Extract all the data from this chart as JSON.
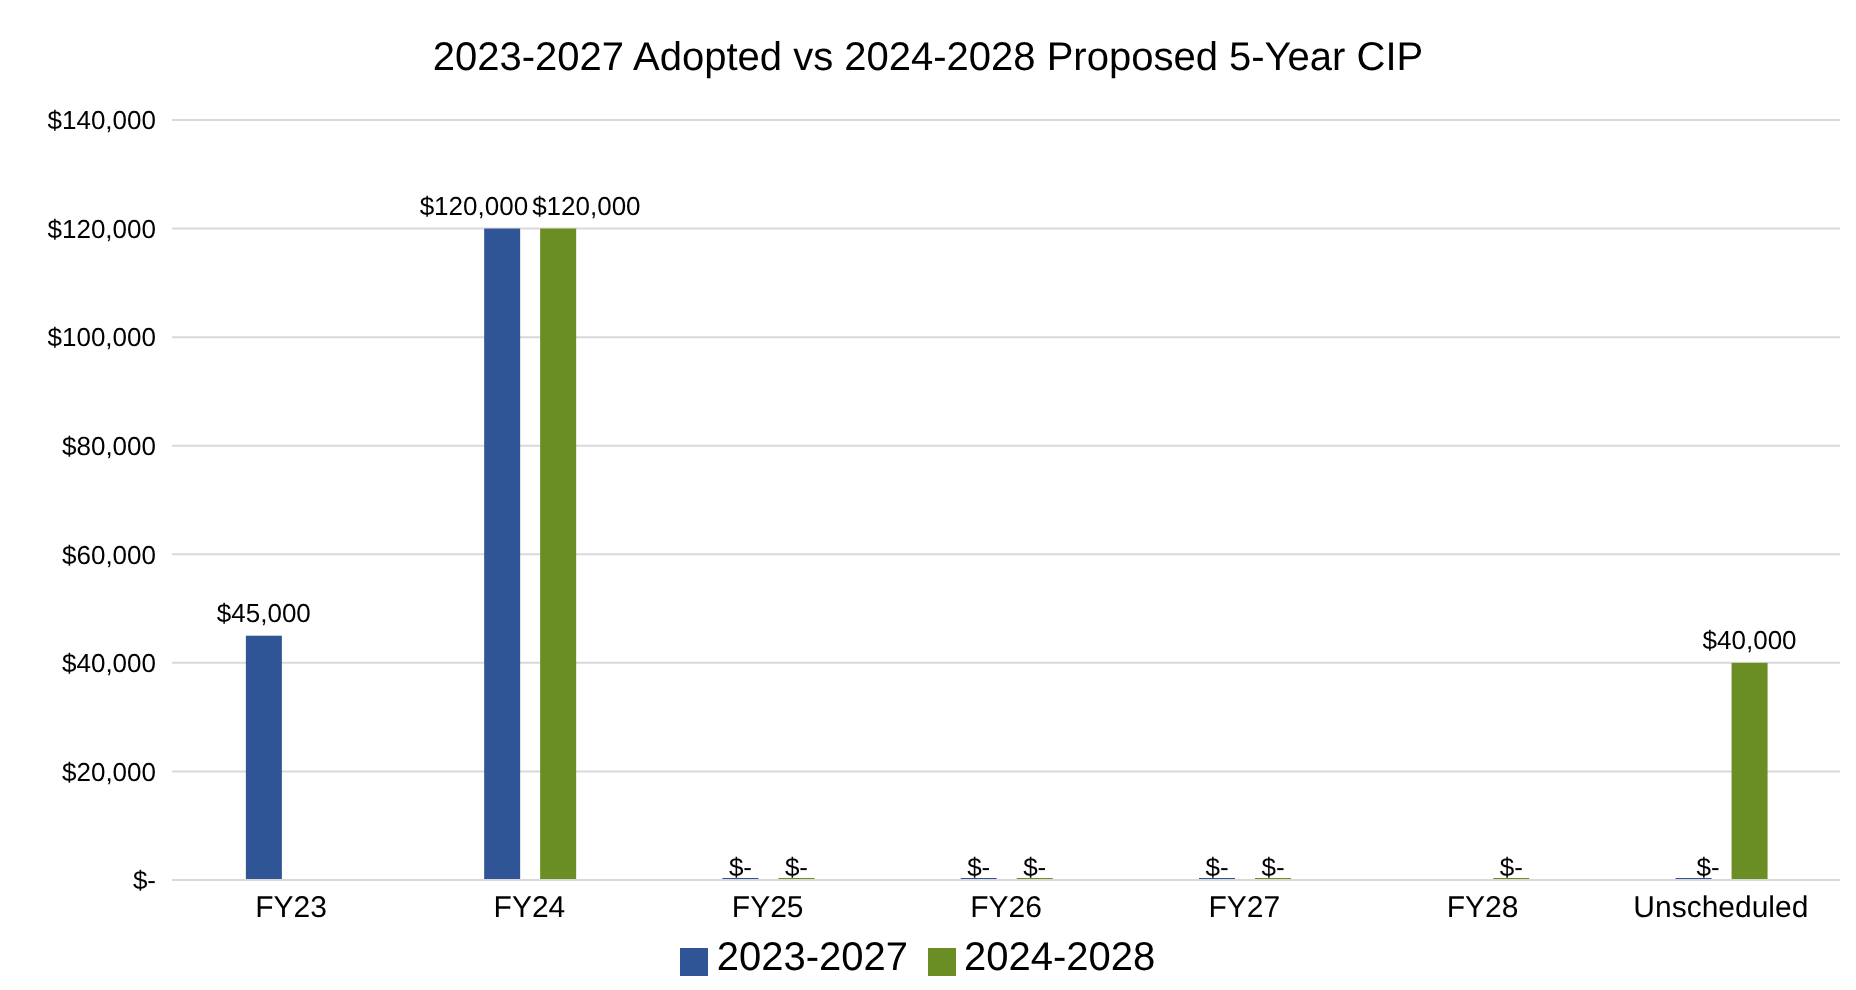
{
  "chart_data": {
    "type": "bar",
    "title": "2023-2027 Adopted vs 2024-2028 Proposed 5-Year CIP",
    "categories": [
      "FY23",
      "FY24",
      "FY25",
      "FY26",
      "FY27",
      "FY28",
      "Unscheduled"
    ],
    "series": [
      {
        "name": "2023-2027",
        "color": "#2f5597",
        "values": [
          45000,
          120000,
          0,
          0,
          0,
          null,
          0
        ],
        "value_labels": [
          "$45,000",
          "$120,000",
          "$-",
          "$-",
          "$-",
          null,
          "$-"
        ]
      },
      {
        "name": "2024-2028",
        "color": "#6a8e23",
        "values": [
          null,
          120000,
          0,
          0,
          0,
          0,
          40000
        ],
        "value_labels": [
          null,
          "$120,000",
          "$-",
          "$-",
          "$-",
          "$-",
          "$40,000"
        ]
      }
    ],
    "ylim": [
      0,
      140000
    ],
    "yticks": [
      {
        "value": 0,
        "label": "$-"
      },
      {
        "value": 20000,
        "label": "$20,000"
      },
      {
        "value": 40000,
        "label": "$40,000"
      },
      {
        "value": 60000,
        "label": "$60,000"
      },
      {
        "value": 80000,
        "label": "$80,000"
      },
      {
        "value": 100000,
        "label": "$100,000"
      },
      {
        "value": 120000,
        "label": "$120,000"
      },
      {
        "value": 140000,
        "label": "$140,000"
      }
    ],
    "grid": "y",
    "legend": "bottom"
  }
}
